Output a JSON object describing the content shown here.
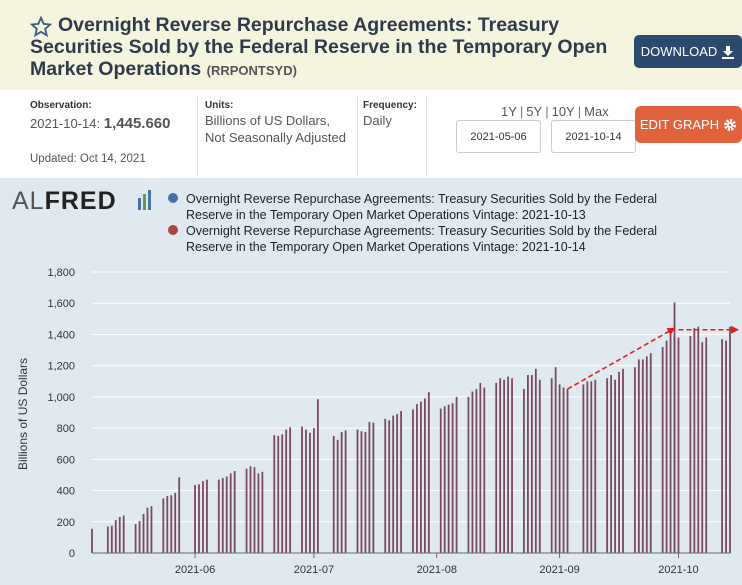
{
  "header": {
    "title": "Overnight Reverse Repurchase Agreements: Treasury Securities Sold by the Federal Reserve in the Temporary Open Market Operations",
    "series_id": "(RRPONTSYD)",
    "download_label": "DOWNLOAD"
  },
  "info": {
    "observation_label": "Observation:",
    "observation_date": "2021-10-14:",
    "observation_value": "1,445.660",
    "updated": "Updated: Oct 14, 2021",
    "units_label": "Units:",
    "units_line1": "Billions of US Dollars,",
    "units_line2": "Not Seasonally Adjusted",
    "frequency_label": "Frequency:",
    "frequency_value": "Daily"
  },
  "controls": {
    "range_1y": "1Y",
    "range_5y": "5Y",
    "range_10y": "10Y",
    "range_max": "Max",
    "start_date": "2021-05-06",
    "end_date": "2021-10-14",
    "edit_graph_label": "EDIT GRAPH"
  },
  "logo": {
    "al": "AL",
    "fred": "FRED"
  },
  "colors": {
    "series_vintage_1013": "#4572a7",
    "series_vintage_1014": "#aa4643",
    "bar_fill": "#7a4a63",
    "trend_arrow": "#e0201c",
    "header_bg": "#f4f4df",
    "chart_bg": "#e1e9f0"
  },
  "chart_data": {
    "type": "bar",
    "ylabel": "Billions of US Dollars",
    "ylim": [
      0,
      1800
    ],
    "yticks": [
      0,
      200,
      400,
      600,
      800,
      1000,
      1200,
      1400,
      1600,
      1800
    ],
    "ytick_labels": [
      "0",
      "200",
      "400",
      "600",
      "800",
      "1,000",
      "1,200",
      "1,400",
      "1,600",
      "1,800"
    ],
    "xticks": [
      {
        "date": "2021-06-01",
        "label": "2021-06"
      },
      {
        "date": "2021-07-01",
        "label": "2021-07"
      },
      {
        "date": "2021-08-01",
        "label": "2021-08"
      },
      {
        "date": "2021-09-01",
        "label": "2021-09"
      },
      {
        "date": "2021-10-01",
        "label": "2021-10"
      }
    ],
    "xlim": [
      "2021-05-06",
      "2021-10-14"
    ],
    "grid": "horizontal",
    "legend_position": "top",
    "series": [
      {
        "name": "Overnight Reverse Repurchase Agreements: Treasury Securities Sold by the Federal Reserve in the Temporary Open Market Operations Vintage: 2021-10-13"
      },
      {
        "name": "Overnight Reverse Repurchase Agreements: Treasury Securities Sold by the Federal Reserve in the Temporary Open Market Operations Vintage: 2021-10-14"
      }
    ],
    "x": [
      "2021-05-06",
      "2021-05-10",
      "2021-05-11",
      "2021-05-12",
      "2021-05-13",
      "2021-05-14",
      "2021-05-17",
      "2021-05-18",
      "2021-05-19",
      "2021-05-20",
      "2021-05-21",
      "2021-05-24",
      "2021-05-25",
      "2021-05-26",
      "2021-05-27",
      "2021-05-28",
      "2021-06-01",
      "2021-06-02",
      "2021-06-03",
      "2021-06-04",
      "2021-06-07",
      "2021-06-08",
      "2021-06-09",
      "2021-06-10",
      "2021-06-11",
      "2021-06-14",
      "2021-06-15",
      "2021-06-16",
      "2021-06-17",
      "2021-06-18",
      "2021-06-21",
      "2021-06-22",
      "2021-06-23",
      "2021-06-24",
      "2021-06-25",
      "2021-06-28",
      "2021-06-29",
      "2021-06-30",
      "2021-07-01",
      "2021-07-02",
      "2021-07-06",
      "2021-07-07",
      "2021-07-08",
      "2021-07-09",
      "2021-07-12",
      "2021-07-13",
      "2021-07-14",
      "2021-07-15",
      "2021-07-16",
      "2021-07-19",
      "2021-07-20",
      "2021-07-21",
      "2021-07-22",
      "2021-07-23",
      "2021-07-26",
      "2021-07-27",
      "2021-07-28",
      "2021-07-29",
      "2021-07-30",
      "2021-08-02",
      "2021-08-03",
      "2021-08-04",
      "2021-08-05",
      "2021-08-06",
      "2021-08-09",
      "2021-08-10",
      "2021-08-11",
      "2021-08-12",
      "2021-08-13",
      "2021-08-16",
      "2021-08-17",
      "2021-08-18",
      "2021-08-19",
      "2021-08-20",
      "2021-08-23",
      "2021-08-24",
      "2021-08-25",
      "2021-08-26",
      "2021-08-27",
      "2021-08-30",
      "2021-08-31",
      "2021-09-01",
      "2021-09-02",
      "2021-09-03",
      "2021-09-07",
      "2021-09-08",
      "2021-09-09",
      "2021-09-10",
      "2021-09-13",
      "2021-09-14",
      "2021-09-15",
      "2021-09-16",
      "2021-09-17",
      "2021-09-20",
      "2021-09-21",
      "2021-09-22",
      "2021-09-23",
      "2021-09-24",
      "2021-09-27",
      "2021-09-28",
      "2021-09-29",
      "2021-09-30",
      "2021-10-01",
      "2021-10-04",
      "2021-10-05",
      "2021-10-06",
      "2021-10-07",
      "2021-10-08",
      "2021-10-12",
      "2021-10-13",
      "2021-10-14"
    ],
    "values": [
      155,
      170,
      175,
      210,
      230,
      240,
      185,
      205,
      250,
      290,
      300,
      350,
      365,
      370,
      385,
      485,
      435,
      440,
      460,
      470,
      470,
      480,
      490,
      510,
      525,
      540,
      555,
      550,
      510,
      520,
      755,
      750,
      760,
      790,
      805,
      810,
      790,
      770,
      800,
      985,
      750,
      725,
      775,
      785,
      790,
      780,
      775,
      840,
      835,
      860,
      850,
      880,
      890,
      910,
      920,
      955,
      970,
      990,
      1030,
      925,
      940,
      950,
      960,
      1000,
      1000,
      1035,
      1050,
      1090,
      1060,
      1090,
      1120,
      1110,
      1130,
      1120,
      1050,
      1140,
      1140,
      1180,
      1110,
      1120,
      1190,
      1080,
      1060,
      1050,
      1080,
      1100,
      1100,
      1110,
      1120,
      1140,
      1110,
      1160,
      1180,
      1190,
      1240,
      1240,
      1260,
      1280,
      1320,
      1360,
      1410,
      1380,
      1380,
      1390,
      1440,
      1450,
      1350,
      1380,
      1370,
      1360,
      1450
    ],
    "spikes": [
      {
        "x": "2021-09-30",
        "value": 1605
      }
    ],
    "annotations": [
      {
        "type": "arrow",
        "from": {
          "x": "2021-09-03",
          "value": 1050
        },
        "to": {
          "x": "2021-09-30",
          "value": 1440
        }
      },
      {
        "type": "arrow",
        "from": {
          "x": "2021-10-01",
          "value": 1430
        },
        "to": {
          "x": "2021-10-14",
          "value": 1430
        }
      }
    ]
  }
}
